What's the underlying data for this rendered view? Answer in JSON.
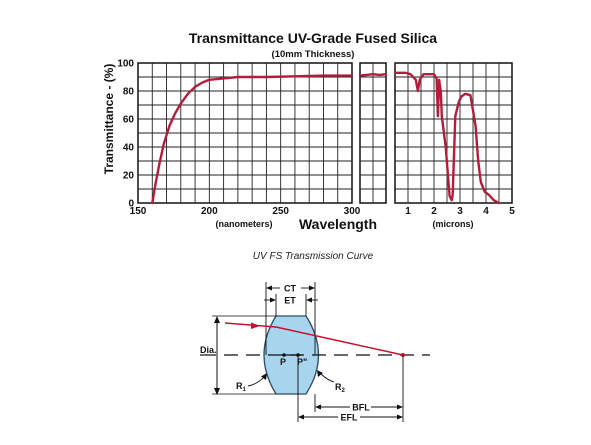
{
  "chart_data": {
    "type": "line",
    "title": "Transmittance UV-Grade Fused Silica",
    "subtitle": "(10mm Thickness)",
    "ylabel": "Transmittance - (%)",
    "xlabel": "Wavelength",
    "grid": true,
    "y_ticks": [
      "0",
      "20",
      "40",
      "60",
      "80",
      "100"
    ],
    "ylim": [
      0,
      100
    ],
    "panels": [
      {
        "unit_label": "(nanometers)",
        "xlim": [
          150,
          300
        ],
        "x_ticks": [
          "150",
          "200",
          "250",
          "300"
        ],
        "x": [
          160,
          162,
          165,
          168,
          172,
          176,
          180,
          185,
          190,
          195,
          200,
          210,
          220,
          240,
          260,
          280,
          300
        ],
        "y": [
          0,
          12,
          28,
          42,
          55,
          64,
          71,
          78,
          83,
          86,
          88,
          89,
          90,
          90,
          90.5,
          91,
          91
        ]
      },
      {
        "unit_label": "",
        "xlim": [
          300,
          400
        ],
        "x_ticks": [],
        "x": [
          300,
          325,
          350,
          375,
          400
        ],
        "y": [
          91,
          91.5,
          92,
          91.5,
          92
        ]
      },
      {
        "unit_label": "(microns)",
        "xlim": [
          0.5,
          5
        ],
        "x_ticks": [
          "1",
          "2",
          "3",
          "4",
          "5"
        ],
        "x": [
          0.5,
          0.9,
          1.1,
          1.3,
          1.38,
          1.45,
          1.6,
          1.8,
          2.0,
          2.1,
          2.15,
          2.2,
          2.22,
          2.26,
          2.3,
          2.45,
          2.6,
          2.68,
          2.72,
          2.76,
          2.82,
          2.95,
          3.05,
          3.2,
          3.4,
          3.6,
          3.7,
          3.8,
          3.95,
          4.1,
          4.3,
          4.5
        ],
        "y": [
          93,
          93,
          92,
          88,
          80,
          88,
          92,
          92,
          92,
          89,
          62,
          88,
          85,
          80,
          62,
          40,
          5,
          2,
          6,
          30,
          62,
          72,
          76,
          78,
          77,
          55,
          30,
          15,
          8,
          6,
          2,
          0
        ]
      }
    ],
    "caption": "UV FS Transmission Curve",
    "series_color": "#b01e3c"
  },
  "diagram": {
    "labels": {
      "ct": "CT",
      "et": "ET",
      "dia": "Dia.",
      "p": "P",
      "p_prime": "P\"",
      "r1": "R",
      "r1_sub": "1",
      "r2": "R",
      "r2_sub": "2",
      "bfl": "BFL",
      "efl": "EFL"
    },
    "lens_color": "#a8d4ee",
    "ray_color": "#c8102e"
  }
}
